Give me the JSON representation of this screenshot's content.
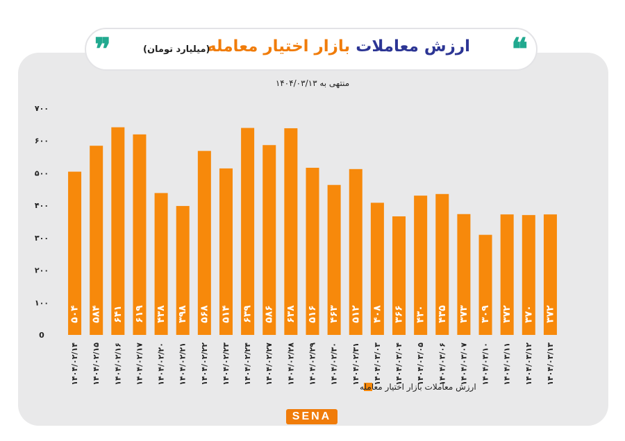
{
  "header": {
    "title_main": "ارزش معاملات",
    "title_accent": "بازار اختیار معامله",
    "unit": "(میلیارد تومان)",
    "subtitle": "منتهی به ۱۴۰۴/۰۳/۱۳"
  },
  "brand": {
    "logo_text": "SENA"
  },
  "colors": {
    "bar": "#f7890b",
    "title_main": "#2c3594",
    "title_accent": "#f07c0a",
    "quote": "#21a98f",
    "card": "#e9e9ea"
  },
  "chart_data": {
    "type": "bar",
    "title": "ارزش معاملات بازار اختیار معامله",
    "subtitle": "منتهی به ۱۴۰۴/۰۳/۱۳",
    "ylim": [
      0,
      700
    ],
    "yticks": [
      0,
      100,
      200,
      300,
      400,
      500,
      600,
      700
    ],
    "ytick_labels": [
      "0",
      "۱۰۰",
      "۲۰۰",
      "۳۰۰",
      "۴۰۰",
      "۵۰۰",
      "۶۰۰",
      "۷۰۰"
    ],
    "grid": false,
    "legend_position": "bottom",
    "categories": [
      "۱۴۰۴/۰۲/۱۴",
      "۱۴۰۴/۰۲/۱۵",
      "۱۴۰۴/۰۲/۱۶",
      "۱۴۰۴/۰۲/۱۷",
      "۱۴۰۴/۰۲/۲۰",
      "۱۴۰۴/۰۲/۲۱",
      "۱۴۰۴/۰۲/۲۲",
      "۱۴۰۴/۰۲/۲۳",
      "۱۴۰۴/۰۲/۲۴",
      "۱۴۰۴/۰۲/۲۷",
      "۱۴۰۴/۰۲/۲۸",
      "۱۴۰۴/۰۲/۲۹",
      "۱۴۰۴/۰۲/۳۰",
      "۱۴۰۴/۰۲/۳۱",
      "۱۴۰۴/۰۳/۰۳",
      "۱۴۰۴/۰۳/۰۴",
      "۱۴۰۴/۰۳/۰۵",
      "۱۴۰۴/۰۳/۰۶",
      "۱۴۰۴/۰۳/۰۷",
      "۱۴۰۴/۰۳/۱۰",
      "۱۴۰۴/۰۳/۱۱",
      "۱۴۰۴/۰۳/۱۲",
      "۱۴۰۴/۰۳/۱۳"
    ],
    "series": [
      {
        "name": "ارزش معاملات بازار اختیار معامله",
        "values": [
          504,
          584,
          641,
          619,
          438,
          398,
          568,
          514,
          639,
          586,
          638,
          516,
          463,
          512,
          408,
          366,
          430,
          435,
          373,
          309,
          372,
          370,
          372
        ],
        "labels": [
          "۵۰۴",
          "۵۸۴",
          "۶۴۱",
          "۶۱۹",
          "۴۳۸",
          "۳۹۸",
          "۵۶۸",
          "۵۱۴",
          "۶۳۹",
          "۵۸۶",
          "۶۳۸",
          "۵۱۶",
          "۴۶۳",
          "۵۱۲",
          "۴۰۸",
          "۳۶۶",
          "۴۳۰",
          "۴۳۵",
          "۳۷۳",
          "۳۰۹",
          "۳۷۲",
          "۳۷۰",
          "۳۷۲"
        ]
      }
    ]
  }
}
